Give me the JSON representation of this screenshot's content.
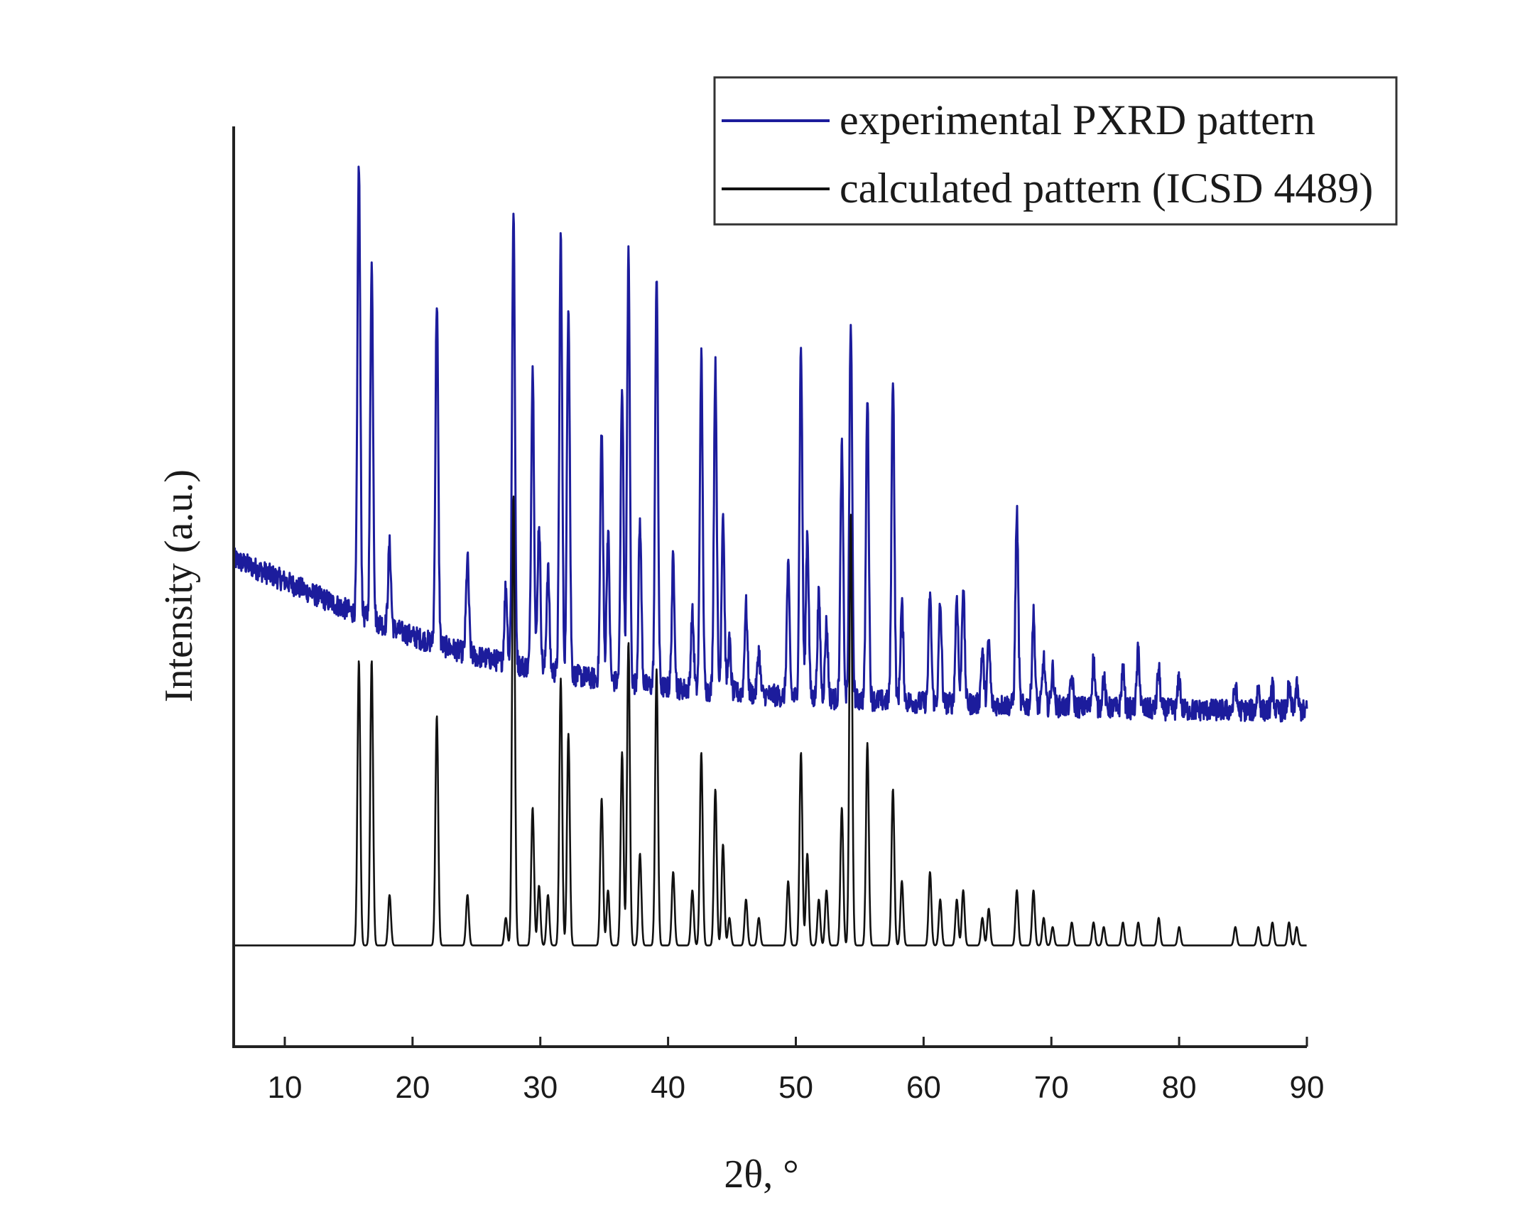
{
  "chart_data": {
    "type": "line",
    "title": "",
    "xlabel": "2θ, °",
    "ylabel": "Intensity (a.u.)",
    "xlim": [
      6,
      90
    ],
    "ylim": [
      0,
      1
    ],
    "x_ticks": [
      10,
      20,
      30,
      40,
      50,
      60,
      70,
      80,
      90
    ],
    "y_ticks": [],
    "grid": false,
    "legend_position": "top-right",
    "colors": {
      "experimental": "#1c1c9c",
      "calculated": "#111111",
      "axis": "#222222"
    },
    "series": [
      {
        "name": "experimental PXRD pattern",
        "color": "#1c1c9c",
        "background_points": [
          [
            6,
            0.53
          ],
          [
            10,
            0.506
          ],
          [
            15,
            0.474
          ],
          [
            20,
            0.446
          ],
          [
            25,
            0.424
          ],
          [
            30,
            0.41
          ],
          [
            35,
            0.398
          ],
          [
            40,
            0.39
          ],
          [
            50,
            0.38
          ],
          [
            60,
            0.374
          ],
          [
            70,
            0.37
          ],
          [
            80,
            0.366
          ],
          [
            90,
            0.365
          ]
        ],
        "peaks": [
          {
            "x": 15.8,
            "y": 0.96
          },
          {
            "x": 16.8,
            "y": 0.85
          },
          {
            "x": 18.2,
            "y": 0.545
          },
          {
            "x": 21.9,
            "y": 0.81
          },
          {
            "x": 24.3,
            "y": 0.53
          },
          {
            "x": 27.3,
            "y": 0.5
          },
          {
            "x": 27.9,
            "y": 0.91
          },
          {
            "x": 29.4,
            "y": 0.74
          },
          {
            "x": 29.9,
            "y": 0.57
          },
          {
            "x": 30.6,
            "y": 0.52
          },
          {
            "x": 31.6,
            "y": 0.88
          },
          {
            "x": 32.2,
            "y": 0.81
          },
          {
            "x": 34.8,
            "y": 0.67
          },
          {
            "x": 35.3,
            "y": 0.56
          },
          {
            "x": 36.4,
            "y": 0.72
          },
          {
            "x": 36.9,
            "y": 0.86
          },
          {
            "x": 37.8,
            "y": 0.57
          },
          {
            "x": 39.1,
            "y": 0.84
          },
          {
            "x": 40.4,
            "y": 0.53
          },
          {
            "x": 41.9,
            "y": 0.47
          },
          {
            "x": 42.6,
            "y": 0.75
          },
          {
            "x": 43.7,
            "y": 0.74
          },
          {
            "x": 44.3,
            "y": 0.58
          },
          {
            "x": 44.8,
            "y": 0.44
          },
          {
            "x": 46.1,
            "y": 0.48
          },
          {
            "x": 47.1,
            "y": 0.43
          },
          {
            "x": 49.4,
            "y": 0.52
          },
          {
            "x": 50.4,
            "y": 0.76
          },
          {
            "x": 50.9,
            "y": 0.56
          },
          {
            "x": 51.8,
            "y": 0.49
          },
          {
            "x": 52.4,
            "y": 0.46
          },
          {
            "x": 53.6,
            "y": 0.65
          },
          {
            "x": 54.3,
            "y": 0.79
          },
          {
            "x": 55.6,
            "y": 0.71
          },
          {
            "x": 57.6,
            "y": 0.73
          },
          {
            "x": 58.3,
            "y": 0.48
          },
          {
            "x": 60.5,
            "y": 0.49
          },
          {
            "x": 61.3,
            "y": 0.48
          },
          {
            "x": 62.6,
            "y": 0.49
          },
          {
            "x": 63.1,
            "y": 0.5
          },
          {
            "x": 64.6,
            "y": 0.43
          },
          {
            "x": 65.1,
            "y": 0.44
          },
          {
            "x": 67.3,
            "y": 0.58
          },
          {
            "x": 68.6,
            "y": 0.47
          },
          {
            "x": 69.4,
            "y": 0.42
          },
          {
            "x": 70.1,
            "y": 0.41
          },
          {
            "x": 71.6,
            "y": 0.4
          },
          {
            "x": 73.3,
            "y": 0.42
          },
          {
            "x": 74.1,
            "y": 0.4
          },
          {
            "x": 75.6,
            "y": 0.41
          },
          {
            "x": 76.8,
            "y": 0.43
          },
          {
            "x": 78.4,
            "y": 0.41
          },
          {
            "x": 80.0,
            "y": 0.4
          },
          {
            "x": 84.4,
            "y": 0.39
          },
          {
            "x": 86.2,
            "y": 0.39
          },
          {
            "x": 87.3,
            "y": 0.39
          },
          {
            "x": 88.6,
            "y": 0.39
          },
          {
            "x": 89.2,
            "y": 0.39
          }
        ]
      },
      {
        "name": "calculated pattern (ICSD 4489)",
        "color": "#111111",
        "baseline": 0.11,
        "peaks": [
          {
            "x": 15.8,
            "y": 0.42
          },
          {
            "x": 16.8,
            "y": 0.42
          },
          {
            "x": 18.2,
            "y": 0.165
          },
          {
            "x": 21.9,
            "y": 0.36
          },
          {
            "x": 24.3,
            "y": 0.165
          },
          {
            "x": 27.3,
            "y": 0.14
          },
          {
            "x": 27.9,
            "y": 0.6
          },
          {
            "x": 29.4,
            "y": 0.26
          },
          {
            "x": 29.9,
            "y": 0.175
          },
          {
            "x": 30.6,
            "y": 0.165
          },
          {
            "x": 31.6,
            "y": 0.4
          },
          {
            "x": 32.2,
            "y": 0.34
          },
          {
            "x": 34.8,
            "y": 0.27
          },
          {
            "x": 35.3,
            "y": 0.17
          },
          {
            "x": 36.4,
            "y": 0.32
          },
          {
            "x": 36.9,
            "y": 0.44
          },
          {
            "x": 37.8,
            "y": 0.21
          },
          {
            "x": 39.1,
            "y": 0.41
          },
          {
            "x": 40.4,
            "y": 0.19
          },
          {
            "x": 41.9,
            "y": 0.17
          },
          {
            "x": 42.6,
            "y": 0.32
          },
          {
            "x": 43.7,
            "y": 0.28
          },
          {
            "x": 44.3,
            "y": 0.22
          },
          {
            "x": 44.8,
            "y": 0.14
          },
          {
            "x": 46.1,
            "y": 0.16
          },
          {
            "x": 47.1,
            "y": 0.14
          },
          {
            "x": 49.4,
            "y": 0.18
          },
          {
            "x": 50.4,
            "y": 0.32
          },
          {
            "x": 50.9,
            "y": 0.21
          },
          {
            "x": 51.8,
            "y": 0.16
          },
          {
            "x": 52.4,
            "y": 0.17
          },
          {
            "x": 53.6,
            "y": 0.26
          },
          {
            "x": 54.3,
            "y": 0.58
          },
          {
            "x": 55.6,
            "y": 0.33
          },
          {
            "x": 57.6,
            "y": 0.28
          },
          {
            "x": 58.3,
            "y": 0.18
          },
          {
            "x": 60.5,
            "y": 0.19
          },
          {
            "x": 61.3,
            "y": 0.16
          },
          {
            "x": 62.6,
            "y": 0.16
          },
          {
            "x": 63.1,
            "y": 0.17
          },
          {
            "x": 64.6,
            "y": 0.14
          },
          {
            "x": 65.1,
            "y": 0.15
          },
          {
            "x": 67.3,
            "y": 0.17
          },
          {
            "x": 68.6,
            "y": 0.17
          },
          {
            "x": 69.4,
            "y": 0.14
          },
          {
            "x": 70.1,
            "y": 0.13
          },
          {
            "x": 71.6,
            "y": 0.135
          },
          {
            "x": 73.3,
            "y": 0.135
          },
          {
            "x": 74.1,
            "y": 0.13
          },
          {
            "x": 75.6,
            "y": 0.135
          },
          {
            "x": 76.8,
            "y": 0.135
          },
          {
            "x": 78.4,
            "y": 0.14
          },
          {
            "x": 80.0,
            "y": 0.13
          },
          {
            "x": 84.4,
            "y": 0.13
          },
          {
            "x": 86.2,
            "y": 0.13
          },
          {
            "x": 87.3,
            "y": 0.135
          },
          {
            "x": 88.6,
            "y": 0.135
          },
          {
            "x": 89.2,
            "y": 0.13
          }
        ]
      }
    ]
  }
}
